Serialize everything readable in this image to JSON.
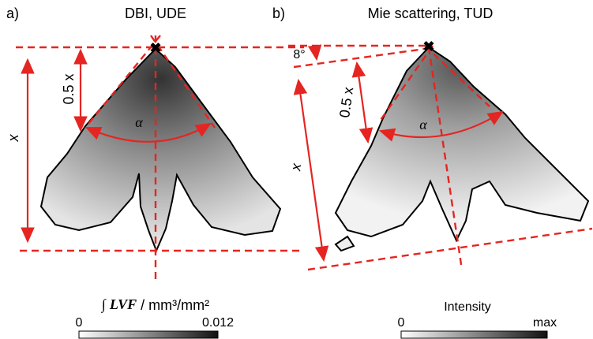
{
  "panels": [
    {
      "label": "a)",
      "title": "DBI, UDE",
      "half_length": "0.5 x",
      "length": "x",
      "angle": "α",
      "colorbar": {
        "integral": "∫",
        "quantity": "LVF",
        "unit": "/ mm³/mm²",
        "min_label": "0",
        "max_label": "0.012"
      }
    },
    {
      "label": "b)",
      "title": "Mie scattering, TUD",
      "tilt": "8°",
      "half_length": "0.5 x",
      "length": "x",
      "angle": "α",
      "colorbar": {
        "title": "Intensity",
        "min_label": "0",
        "max_label": "max"
      }
    }
  ]
}
